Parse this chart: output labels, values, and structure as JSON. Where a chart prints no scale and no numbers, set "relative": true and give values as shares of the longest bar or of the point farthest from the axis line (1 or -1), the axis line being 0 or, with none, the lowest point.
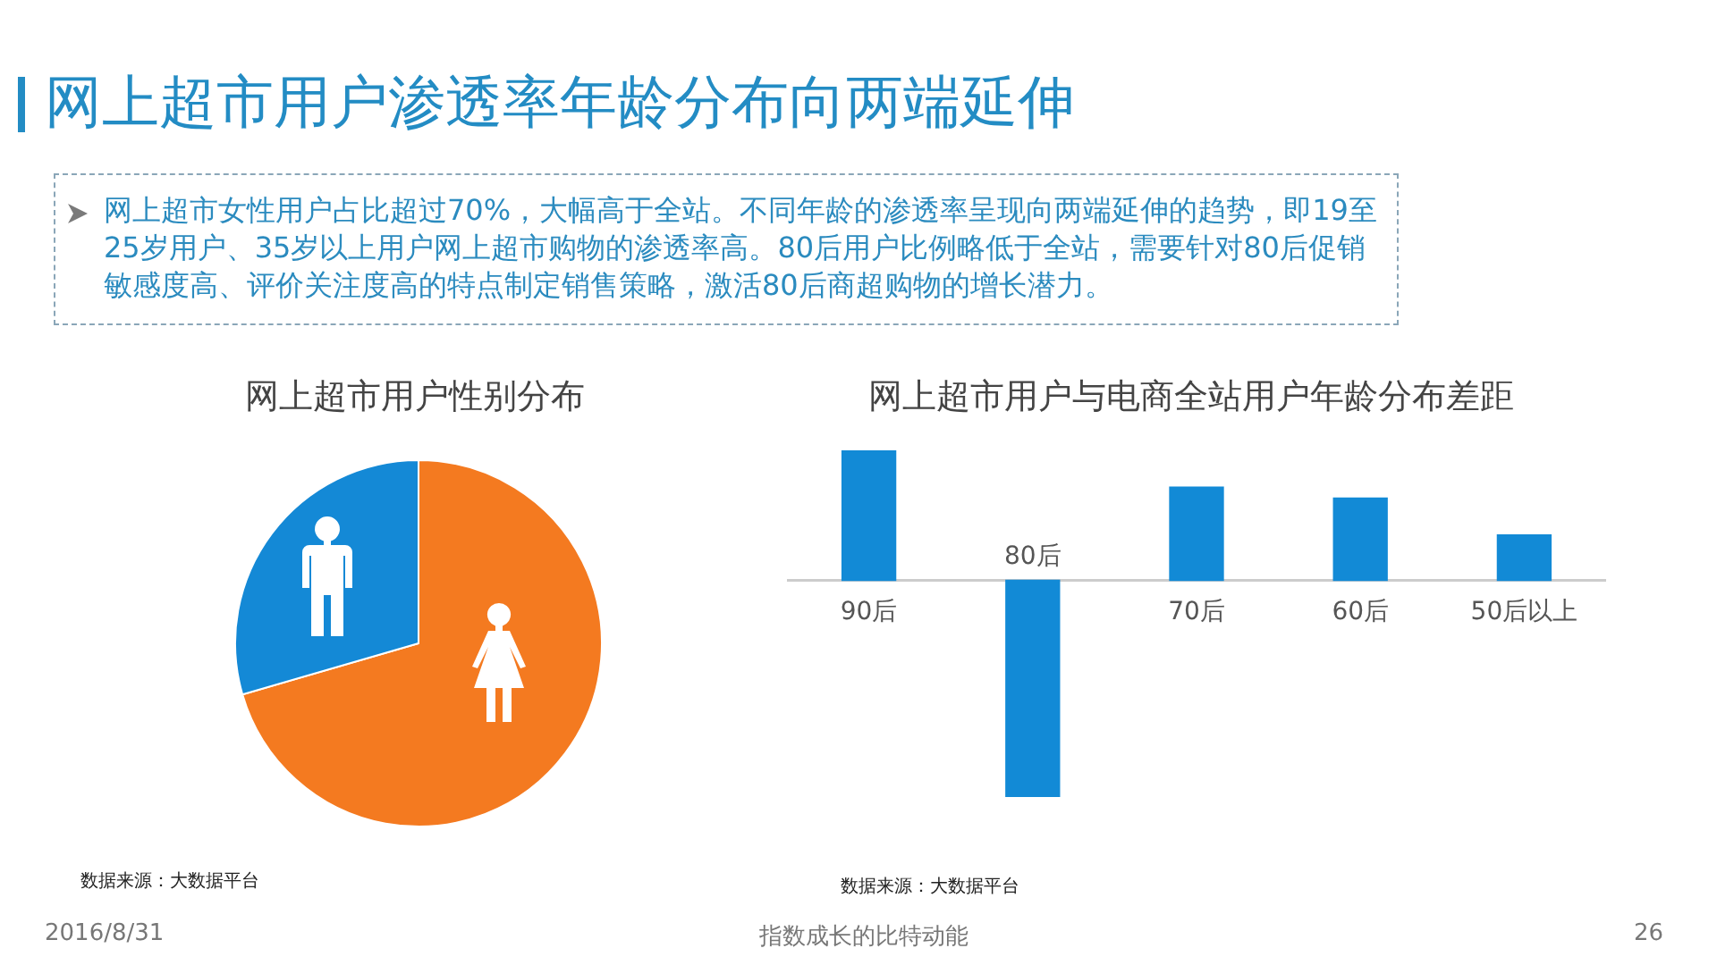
{
  "chart_data": [
    {
      "type": "other",
      "title": "网上超市用户渗透率年龄分布向两端延伸",
      "annotations": [
        "网上超市女性用户占比超过70%，大幅高于全站。不同年龄的渗透率呈现向两端延伸的趋势，即19至25岁用户、35岁以上用户网上超市购物的渗透率高。80后用户比例略低于全站，需要针对80后促销敏感度高、评价关注度高的特点制定销售策略，激活80后商超购物的增长潜力。",
        "2016/8/31",
        "指数成长的比特动能",
        "26"
      ]
    },
    {
      "type": "pie",
      "title": "网上超市用户性别分布",
      "categories": [
        null,
        null
      ],
      "values": [
        70.5,
        29.5
      ],
      "colors": [
        "#f47a20",
        "#1489d6"
      ],
      "annotations": [
        "数据来源：大数据平台"
      ]
    },
    {
      "type": "bar",
      "title": "网上超市用户与电商全站用户年龄分布差距",
      "categories": [
        "90后",
        "80后",
        "70后",
        "60后",
        "50后以上"
      ],
      "values": [
        0.6,
        -1,
        0.43,
        0.38,
        0.21
      ],
      "color": "#128ad6",
      "relative": true,
      "annotations": [
        "数据来源：大数据平台"
      ]
    }
  ]
}
